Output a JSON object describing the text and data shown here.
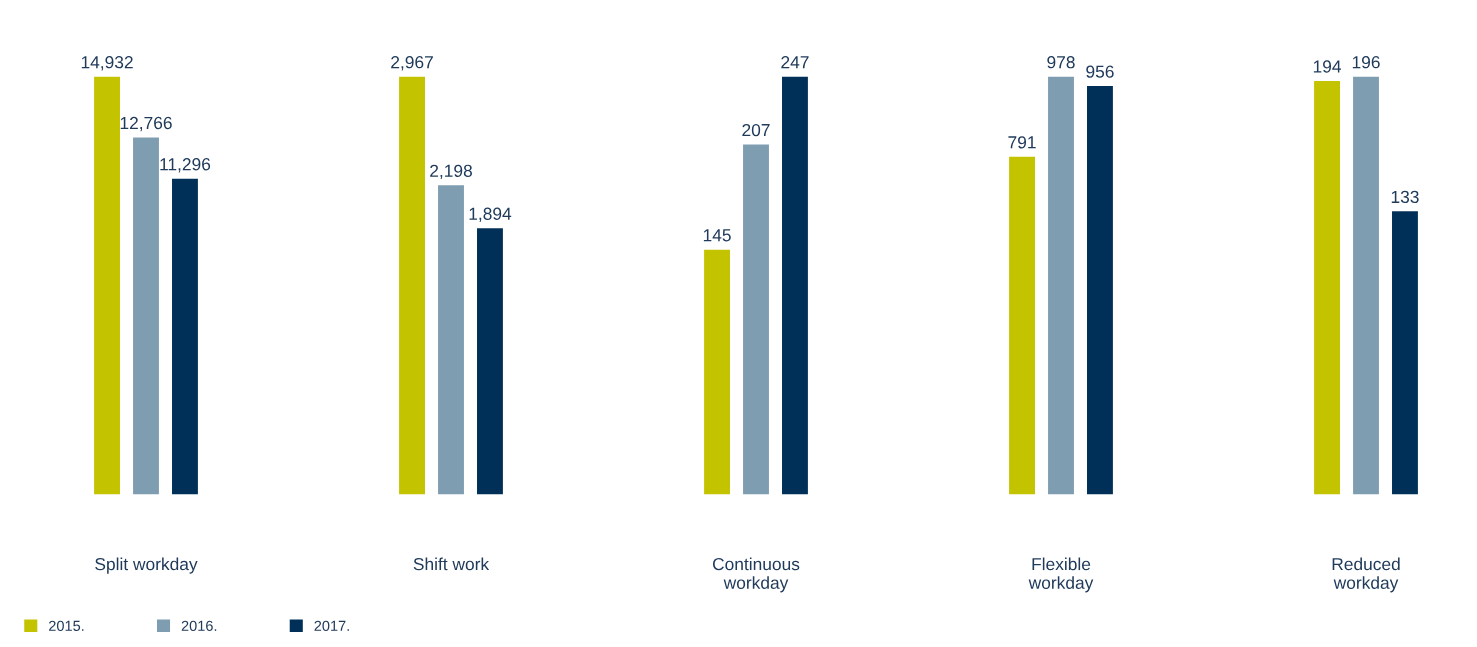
{
  "chart_data": [
    {
      "type": "bar",
      "categories": [
        "Split workday"
      ],
      "data_labels": true,
      "legend": "bottom",
      "series": [
        {
          "name": "2015.",
          "color": "#c3c300",
          "values": [
            14932
          ],
          "value_labels": [
            "14,932"
          ]
        },
        {
          "name": "2016.",
          "color": "#7f9db0",
          "values": [
            12766
          ],
          "value_labels": [
            "12,766"
          ]
        },
        {
          "name": "2017.",
          "color": "#003057",
          "values": [
            11296
          ],
          "value_labels": [
            "11,296"
          ]
        }
      ]
    },
    {
      "type": "bar",
      "categories": [
        "Shift work"
      ],
      "data_labels": true,
      "series": [
        {
          "name": "2015.",
          "color": "#c3c300",
          "values": [
            2967
          ],
          "value_labels": [
            "2,967"
          ]
        },
        {
          "name": "2016.",
          "color": "#7f9db0",
          "values": [
            2198
          ],
          "value_labels": [
            "2,198"
          ]
        },
        {
          "name": "2017.",
          "color": "#003057",
          "values": [
            1894
          ],
          "value_labels": [
            "1,894"
          ]
        }
      ]
    },
    {
      "type": "bar",
      "categories": [
        "Continuous\nworkday"
      ],
      "data_labels": true,
      "series": [
        {
          "name": "2015.",
          "color": "#c3c300",
          "values": [
            145
          ]
        },
        {
          "name": "2016.",
          "color": "#7f9db0",
          "values": [
            207
          ]
        },
        {
          "name": "2017.",
          "color": "#003057",
          "values": [
            247
          ]
        }
      ]
    },
    {
      "type": "bar",
      "categories": [
        "Flexible\nworkday"
      ],
      "data_labels": true,
      "series": [
        {
          "name": "2015.",
          "color": "#c3c300",
          "values": [
            791
          ]
        },
        {
          "name": "2016.",
          "color": "#7f9db0",
          "values": [
            978
          ]
        },
        {
          "name": "2017.",
          "color": "#003057",
          "values": [
            956
          ]
        }
      ]
    },
    {
      "type": "bar",
      "categories": [
        "Reduced\nworkday"
      ],
      "data_labels": true,
      "series": [
        {
          "name": "2015.",
          "color": "#c3c300",
          "values": [
            194
          ]
        },
        {
          "name": "2016.",
          "color": "#7f9db0",
          "values": [
            196
          ]
        },
        {
          "name": "2017.",
          "color": "#003057",
          "values": [
            133
          ]
        }
      ]
    }
  ]
}
